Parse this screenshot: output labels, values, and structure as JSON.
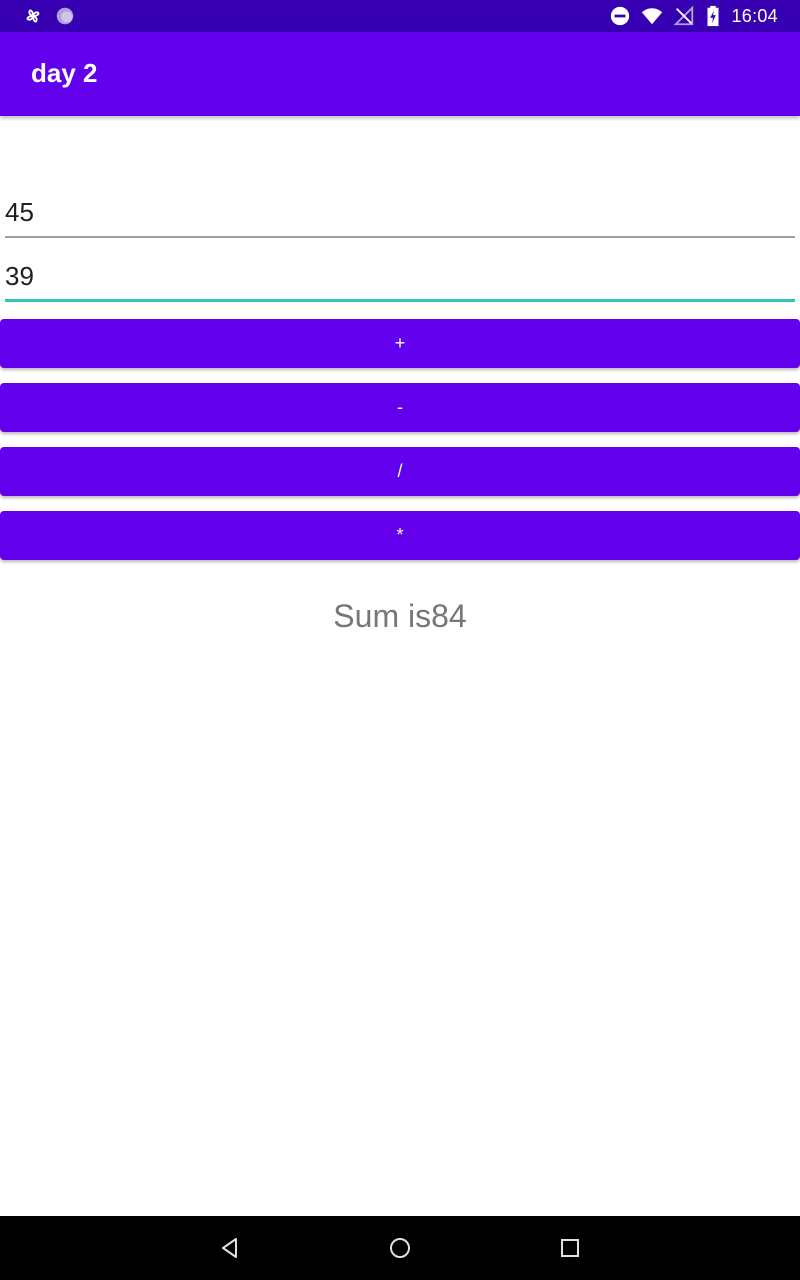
{
  "status_bar": {
    "time": "16:04",
    "left_icons": [
      "pinwheel-icon",
      "circle-notification-icon"
    ],
    "right_icons": [
      "do-not-disturb-icon",
      "wifi-icon",
      "no-signal-icon",
      "battery-charging-icon"
    ]
  },
  "app_bar": {
    "title": "day 2",
    "color": "#6200ee"
  },
  "inputs": {
    "first_value": "45",
    "second_value": "39"
  },
  "buttons": {
    "add_label": "+",
    "subtract_label": "-",
    "divide_label": "/",
    "multiply_label": "*"
  },
  "result": {
    "text": "Sum is84"
  },
  "nav_bar": {
    "icons": [
      "back-icon",
      "home-icon",
      "recents-icon"
    ]
  },
  "colors": {
    "status_bar": "#3700b3",
    "primary": "#6200ee",
    "accent": "#2ec4b6"
  }
}
